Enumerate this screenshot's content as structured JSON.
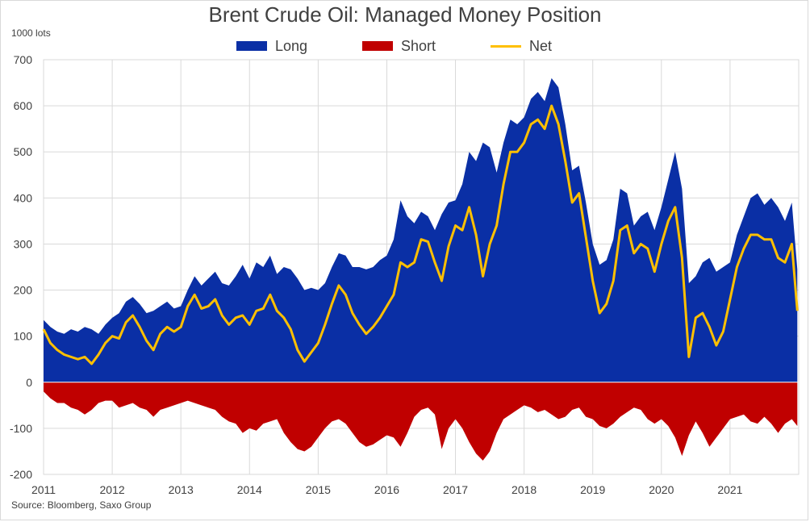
{
  "chart_data": {
    "type": "area",
    "title": "Brent Crude Oil: Managed Money Position",
    "unit_label": "1000 lots",
    "source": "Source: Bloomberg, Saxo Group",
    "xlabel": "",
    "ylabel": "",
    "ylim": [
      -200,
      700
    ],
    "yticks": [
      700,
      600,
      500,
      400,
      300,
      200,
      100,
      0,
      -100,
      -200
    ],
    "xlim": [
      2011.0,
      2022.0
    ],
    "xticks": [
      "2011",
      "2012",
      "2013",
      "2014",
      "2015",
      "2016",
      "2017",
      "2018",
      "2019",
      "2020",
      "2021"
    ],
    "grid": true,
    "legend_position": "top-center",
    "colors": {
      "long": "#0a2fa5",
      "short": "#c00000",
      "net": "#ffc000",
      "grid": "#d9d9d9"
    },
    "series": [
      {
        "name": "Long",
        "x": [
          2011.0,
          2011.1,
          2011.2,
          2011.3,
          2011.4,
          2011.5,
          2011.6,
          2011.7,
          2011.8,
          2011.9,
          2012.0,
          2012.1,
          2012.2,
          2012.3,
          2012.4,
          2012.5,
          2012.6,
          2012.7,
          2012.8,
          2012.9,
          2013.0,
          2013.1,
          2013.2,
          2013.3,
          2013.4,
          2013.5,
          2013.6,
          2013.7,
          2013.8,
          2013.9,
          2014.0,
          2014.1,
          2014.2,
          2014.3,
          2014.4,
          2014.5,
          2014.6,
          2014.7,
          2014.8,
          2014.9,
          2015.0,
          2015.1,
          2015.2,
          2015.3,
          2015.4,
          2015.5,
          2015.6,
          2015.7,
          2015.8,
          2015.9,
          2016.0,
          2016.1,
          2016.2,
          2016.3,
          2016.4,
          2016.5,
          2016.6,
          2016.7,
          2016.8,
          2016.9,
          2017.0,
          2017.1,
          2017.2,
          2017.3,
          2017.4,
          2017.5,
          2017.6,
          2017.7,
          2017.8,
          2017.9,
          2018.0,
          2018.1,
          2018.2,
          2018.3,
          2018.4,
          2018.5,
          2018.6,
          2018.7,
          2018.8,
          2018.9,
          2019.0,
          2019.1,
          2019.2,
          2019.3,
          2019.4,
          2019.5,
          2019.6,
          2019.7,
          2019.8,
          2019.9,
          2020.0,
          2020.1,
          2020.2,
          2020.3,
          2020.4,
          2020.5,
          2020.6,
          2020.7,
          2020.8,
          2020.9,
          2021.0,
          2021.1,
          2021.2,
          2021.3,
          2021.4,
          2021.5,
          2021.6,
          2021.7,
          2021.8,
          2021.9,
          2021.98
        ],
        "values": [
          135,
          120,
          110,
          105,
          115,
          110,
          120,
          115,
          105,
          125,
          140,
          150,
          175,
          185,
          170,
          150,
          155,
          165,
          175,
          160,
          165,
          200,
          230,
          210,
          225,
          240,
          215,
          210,
          230,
          255,
          225,
          260,
          250,
          275,
          235,
          250,
          245,
          225,
          200,
          205,
          200,
          215,
          250,
          280,
          275,
          250,
          250,
          245,
          250,
          265,
          275,
          310,
          395,
          360,
          345,
          370,
          360,
          330,
          365,
          390,
          395,
          430,
          500,
          480,
          520,
          510,
          455,
          520,
          570,
          560,
          575,
          615,
          630,
          610,
          660,
          640,
          560,
          460,
          470,
          390,
          300,
          255,
          265,
          310,
          420,
          410,
          340,
          360,
          370,
          330,
          380,
          440,
          500,
          420,
          215,
          230,
          260,
          270,
          240,
          250,
          260,
          320,
          360,
          400,
          410,
          385,
          400,
          380,
          350,
          390,
          245
        ]
      },
      {
        "name": "Short",
        "x": [
          2011.0,
          2011.1,
          2011.2,
          2011.3,
          2011.4,
          2011.5,
          2011.6,
          2011.7,
          2011.8,
          2011.9,
          2012.0,
          2012.1,
          2012.2,
          2012.3,
          2012.4,
          2012.5,
          2012.6,
          2012.7,
          2012.8,
          2012.9,
          2013.0,
          2013.1,
          2013.2,
          2013.3,
          2013.4,
          2013.5,
          2013.6,
          2013.7,
          2013.8,
          2013.9,
          2014.0,
          2014.1,
          2014.2,
          2014.3,
          2014.4,
          2014.5,
          2014.6,
          2014.7,
          2014.8,
          2014.9,
          2015.0,
          2015.1,
          2015.2,
          2015.3,
          2015.4,
          2015.5,
          2015.6,
          2015.7,
          2015.8,
          2015.9,
          2016.0,
          2016.1,
          2016.2,
          2016.3,
          2016.4,
          2016.5,
          2016.6,
          2016.7,
          2016.8,
          2016.9,
          2017.0,
          2017.1,
          2017.2,
          2017.3,
          2017.4,
          2017.5,
          2017.6,
          2017.7,
          2017.8,
          2017.9,
          2018.0,
          2018.1,
          2018.2,
          2018.3,
          2018.4,
          2018.5,
          2018.6,
          2018.7,
          2018.8,
          2018.9,
          2019.0,
          2019.1,
          2019.2,
          2019.3,
          2019.4,
          2019.5,
          2019.6,
          2019.7,
          2019.8,
          2019.9,
          2020.0,
          2020.1,
          2020.2,
          2020.3,
          2020.4,
          2020.5,
          2020.6,
          2020.7,
          2020.8,
          2020.9,
          2021.0,
          2021.1,
          2021.2,
          2021.3,
          2021.4,
          2021.5,
          2021.6,
          2021.7,
          2021.8,
          2021.9,
          2021.98
        ],
        "values": [
          -20,
          -35,
          -45,
          -45,
          -55,
          -60,
          -70,
          -60,
          -45,
          -40,
          -40,
          -55,
          -50,
          -45,
          -55,
          -60,
          -75,
          -60,
          -55,
          -50,
          -45,
          -40,
          -45,
          -50,
          -55,
          -60,
          -75,
          -85,
          -90,
          -110,
          -100,
          -105,
          -90,
          -85,
          -80,
          -110,
          -130,
          -145,
          -150,
          -140,
          -120,
          -100,
          -85,
          -80,
          -90,
          -110,
          -130,
          -140,
          -135,
          -125,
          -115,
          -120,
          -140,
          -110,
          -75,
          -60,
          -55,
          -70,
          -145,
          -100,
          -80,
          -100,
          -130,
          -155,
          -170,
          -150,
          -110,
          -80,
          -70,
          -60,
          -50,
          -55,
          -65,
          -60,
          -70,
          -80,
          -75,
          -60,
          -55,
          -75,
          -80,
          -95,
          -100,
          -90,
          -75,
          -65,
          -55,
          -60,
          -80,
          -90,
          -80,
          -95,
          -120,
          -160,
          -115,
          -85,
          -110,
          -140,
          -120,
          -100,
          -80,
          -75,
          -70,
          -85,
          -90,
          -75,
          -90,
          -110,
          -90,
          -80,
          -95
        ]
      },
      {
        "name": "Net",
        "x": [
          2011.0,
          2011.1,
          2011.2,
          2011.3,
          2011.4,
          2011.5,
          2011.6,
          2011.7,
          2011.8,
          2011.9,
          2012.0,
          2012.1,
          2012.2,
          2012.3,
          2012.4,
          2012.5,
          2012.6,
          2012.7,
          2012.8,
          2012.9,
          2013.0,
          2013.1,
          2013.2,
          2013.3,
          2013.4,
          2013.5,
          2013.6,
          2013.7,
          2013.8,
          2013.9,
          2014.0,
          2014.1,
          2014.2,
          2014.3,
          2014.4,
          2014.5,
          2014.6,
          2014.7,
          2014.8,
          2014.9,
          2015.0,
          2015.1,
          2015.2,
          2015.3,
          2015.4,
          2015.5,
          2015.6,
          2015.7,
          2015.8,
          2015.9,
          2016.0,
          2016.1,
          2016.2,
          2016.3,
          2016.4,
          2016.5,
          2016.6,
          2016.7,
          2016.8,
          2016.9,
          2017.0,
          2017.1,
          2017.2,
          2017.3,
          2017.4,
          2017.5,
          2017.6,
          2017.7,
          2017.8,
          2017.9,
          2018.0,
          2018.1,
          2018.2,
          2018.3,
          2018.4,
          2018.5,
          2018.6,
          2018.7,
          2018.8,
          2018.9,
          2019.0,
          2019.1,
          2019.2,
          2019.3,
          2019.4,
          2019.5,
          2019.6,
          2019.7,
          2019.8,
          2019.9,
          2020.0,
          2020.1,
          2020.2,
          2020.3,
          2020.4,
          2020.5,
          2020.6,
          2020.7,
          2020.8,
          2020.9,
          2021.0,
          2021.1,
          2021.2,
          2021.3,
          2021.4,
          2021.5,
          2021.6,
          2021.7,
          2021.8,
          2021.9,
          2021.98
        ],
        "values": [
          115,
          85,
          70,
          60,
          55,
          50,
          55,
          40,
          60,
          85,
          100,
          95,
          130,
          145,
          120,
          90,
          70,
          105,
          120,
          110,
          120,
          165,
          190,
          160,
          165,
          180,
          145,
          125,
          140,
          145,
          125,
          155,
          160,
          190,
          155,
          140,
          115,
          70,
          45,
          65,
          85,
          125,
          170,
          210,
          190,
          150,
          125,
          105,
          120,
          140,
          165,
          190,
          260,
          250,
          260,
          310,
          305,
          260,
          220,
          295,
          340,
          330,
          380,
          320,
          230,
          300,
          340,
          430,
          500,
          500,
          520,
          560,
          570,
          550,
          600,
          560,
          480,
          390,
          410,
          315,
          220,
          150,
          170,
          220,
          330,
          340,
          280,
          300,
          290,
          240,
          300,
          350,
          380,
          270,
          55,
          140,
          150,
          120,
          80,
          110,
          180,
          250,
          290,
          320,
          320,
          310,
          310,
          270,
          260,
          300,
          155
        ]
      }
    ]
  }
}
